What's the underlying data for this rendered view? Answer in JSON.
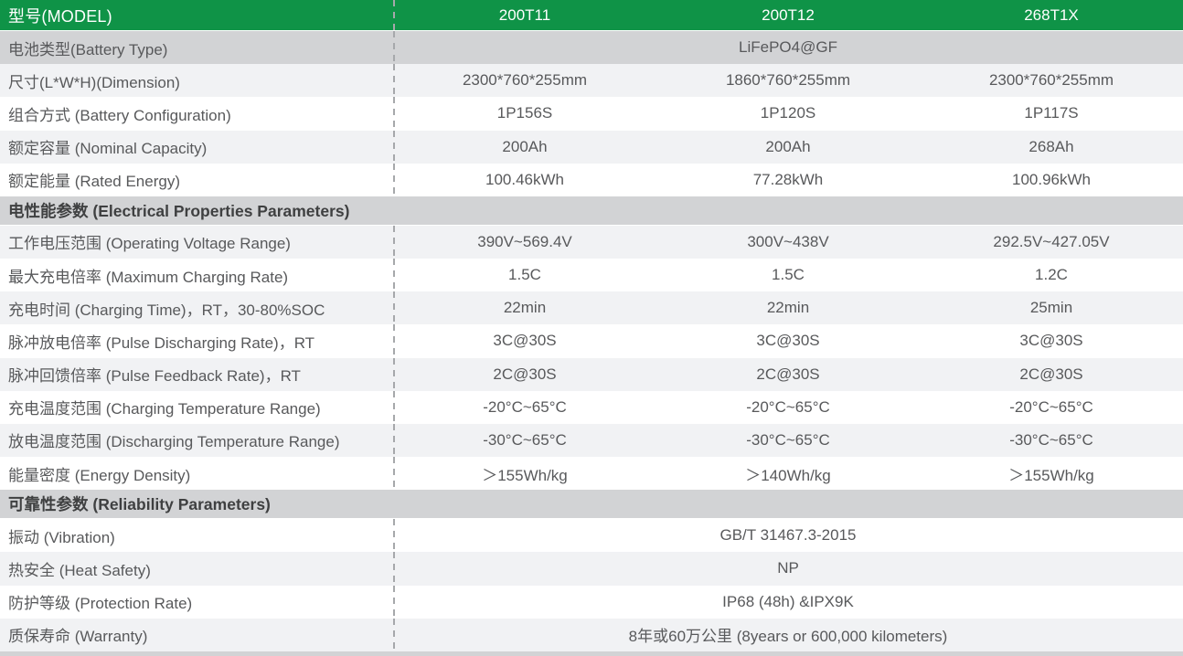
{
  "theme": {
    "green": "#0F9347",
    "gray_row": "#d2d3d5",
    "light_row": "#f1f2f4",
    "white_row": "#ffffff",
    "label_text": "#58595b",
    "value_text": "#58595b",
    "section_text": "#3f4041",
    "header_text": "#ffffff",
    "dash_line": "#a6a8ab"
  },
  "table": {
    "header": {
      "label": "型号(MODEL)",
      "models": [
        "200T11",
        "200T12",
        "268T1X"
      ]
    },
    "rows": [
      {
        "type": "data",
        "shade": "gray",
        "label": "电池类型(Battery Type)",
        "span": "LiFePO4@GF"
      },
      {
        "type": "data",
        "shade": "light",
        "label": "尺寸(L*W*H)(Dimension)",
        "values": [
          "2300*760*255mm",
          "1860*760*255mm",
          "2300*760*255mm"
        ]
      },
      {
        "type": "data",
        "shade": "white",
        "label": "组合方式 (Battery Configuration)",
        "values": [
          "1P156S",
          "1P120S",
          "1P117S"
        ]
      },
      {
        "type": "data",
        "shade": "light",
        "label": "额定容量 (Nominal Capacity)",
        "values": [
          "200Ah",
          "200Ah",
          "268Ah"
        ]
      },
      {
        "type": "data",
        "shade": "white",
        "label": "额定能量 (Rated Energy)",
        "values": [
          "100.46kWh",
          "77.28kWh",
          "100.96kWh"
        ]
      },
      {
        "type": "section",
        "label": "电性能参数 (Electrical Properties Parameters)"
      },
      {
        "type": "data",
        "shade": "light",
        "label": "工作电压范围 (Operating Voltage Range)",
        "values": [
          "390V~569.4V",
          "300V~438V",
          "292.5V~427.05V"
        ]
      },
      {
        "type": "data",
        "shade": "white",
        "label": "最大充电倍率 (Maximum Charging Rate)",
        "values": [
          "1.5C",
          "1.5C",
          "1.2C"
        ]
      },
      {
        "type": "data",
        "shade": "light",
        "label": "充电时间 (Charging Time)，RT，30-80%SOC",
        "values": [
          "22min",
          "22min",
          "25min"
        ]
      },
      {
        "type": "data",
        "shade": "white",
        "label": "脉冲放电倍率 (Pulse Discharging Rate)，RT",
        "values": [
          "3C@30S",
          "3C@30S",
          "3C@30S"
        ]
      },
      {
        "type": "data",
        "shade": "light",
        "label": "脉冲回馈倍率 (Pulse Feedback Rate)，RT",
        "values": [
          "2C@30S",
          "2C@30S",
          "2C@30S"
        ]
      },
      {
        "type": "data",
        "shade": "white",
        "label": "充电温度范围 (Charging Temperature Range)",
        "values": [
          "-20°C~65°C",
          "-20°C~65°C",
          "-20°C~65°C"
        ]
      },
      {
        "type": "data",
        "shade": "light",
        "label": "放电温度范围 (Discharging Temperature Range)",
        "values": [
          "-30°C~65°C",
          "-30°C~65°C",
          "-30°C~65°C"
        ]
      },
      {
        "type": "data",
        "shade": "white",
        "label": "能量密度 (Energy Density)",
        "values": [
          "＞155Wh/kg",
          "＞140Wh/kg",
          "＞155Wh/kg"
        ]
      },
      {
        "type": "section",
        "label": "可靠性参数 (Reliability Parameters)"
      },
      {
        "type": "data",
        "shade": "white",
        "label": "振动 (Vibration)",
        "span": "GB/T 31467.3-2015"
      },
      {
        "type": "data",
        "shade": "light",
        "label": "热安全 (Heat Safety)",
        "span": "NP"
      },
      {
        "type": "data",
        "shade": "white",
        "label": "防护等级 (Protection Rate)",
        "span": "IP68 (48h) &IPX9K"
      },
      {
        "type": "data",
        "shade": "light",
        "label": "质保寿命 (Warranty)",
        "span": "8年或60万公里 (8years or 600,000 kilometers)"
      }
    ]
  }
}
